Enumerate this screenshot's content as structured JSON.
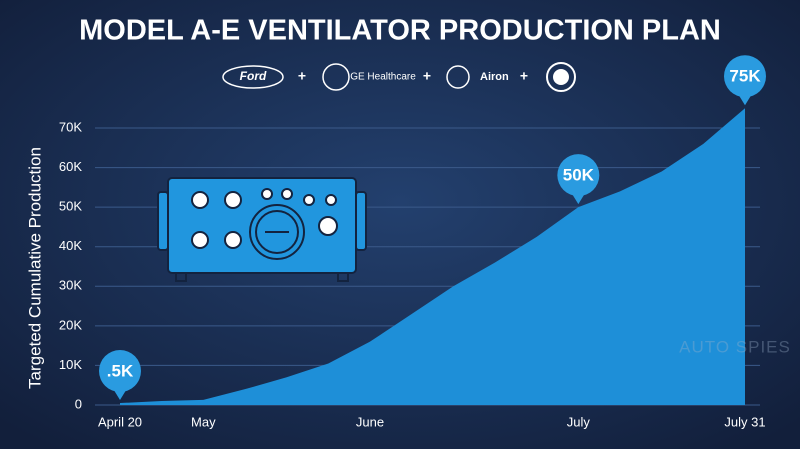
{
  "chart_data": {
    "type": "area",
    "title": "MODEL A-E VENTILATOR PRODUCTION PLAN",
    "partners": [
      "Ford",
      "GE Healthcare",
      "Airon"
    ],
    "ylabel": "Targeted Cumulative Production",
    "watermark": "AUTO SPIES",
    "categories": [
      "April 20",
      null,
      "May",
      null,
      null,
      null,
      "June",
      null,
      null,
      null,
      null,
      "July",
      null,
      null,
      null,
      "July 31"
    ],
    "values": [
      500,
      1000,
      1300,
      4000,
      7000,
      10500,
      16000,
      23000,
      30000,
      36000,
      42500,
      50000,
      54000,
      59000,
      66000,
      75000
    ],
    "value_labels": [
      ".5K",
      null,
      null,
      null,
      null,
      null,
      null,
      null,
      null,
      null,
      null,
      "50K",
      null,
      null,
      null,
      "75K"
    ],
    "color": "#1e8fd8",
    "ylim": [
      0,
      70000
    ],
    "yticks": [
      0,
      {
        "value": 10000,
        "label": "10K"
      },
      {
        "value": 20000,
        "label": "20K"
      },
      {
        "value": 30000,
        "label": "30K"
      },
      {
        "value": 40000,
        "label": "40K"
      },
      {
        "value": 50000,
        "label": "50K"
      },
      {
        "value": 60000,
        "label": "60K"
      },
      {
        "value": 70000,
        "label": "70K"
      }
    ],
    "grid": true
  }
}
